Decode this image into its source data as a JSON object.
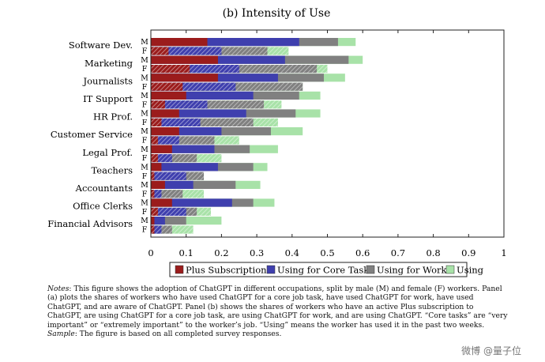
{
  "chart_data": {
    "type": "bar",
    "orientation": "horizontal",
    "stacked": true,
    "title": "(b) Intensity of Use",
    "categories": [
      "Software Dev.",
      "Marketing",
      "Journalists",
      "IT Support",
      "HR Prof.",
      "Customer Service",
      "Legal Prof.",
      "Teachers",
      "Accountants",
      "Office Clerks",
      "Financial Advisors"
    ],
    "genders": [
      "M",
      "F"
    ],
    "xlim": [
      0,
      1
    ],
    "xticks": [
      "0",
      "0.1",
      "0.2",
      "0.3",
      "0.4",
      "0.5",
      "0.6",
      "0.7",
      "0.8",
      "0.9",
      "1"
    ],
    "grid": false,
    "legend_position": "bottom",
    "series": [
      {
        "name": "Plus Subscription",
        "color": "#9b1c1c",
        "M": [
          0.16,
          0.19,
          0.19,
          0.1,
          0.08,
          0.08,
          0.06,
          0.03,
          0.04,
          0.06,
          0.01
        ],
        "F": [
          0.05,
          0.11,
          0.09,
          0.04,
          0.03,
          0.02,
          0.02,
          0.01,
          0.01,
          0.02,
          0.01
        ]
      },
      {
        "name": "Using for Core Task",
        "color": "#3f3fae",
        "M": [
          0.42,
          0.38,
          0.36,
          0.29,
          0.27,
          0.2,
          0.18,
          0.19,
          0.12,
          0.23,
          0.04
        ],
        "F": [
          0.2,
          0.25,
          0.24,
          0.16,
          0.14,
          0.08,
          0.06,
          0.1,
          0.03,
          0.1,
          0.03
        ]
      },
      {
        "name": "Using for Work",
        "color": "#808080",
        "M": [
          0.53,
          0.56,
          0.49,
          0.42,
          0.41,
          0.34,
          0.28,
          0.29,
          0.24,
          0.29,
          0.1
        ],
        "F": [
          0.33,
          0.47,
          0.43,
          0.32,
          0.29,
          0.18,
          0.13,
          0.15,
          0.09,
          0.13,
          0.06
        ]
      },
      {
        "name": "Using",
        "color": "#a8e2a8",
        "M": [
          0.58,
          0.6,
          0.55,
          0.48,
          0.48,
          0.43,
          0.36,
          0.33,
          0.31,
          0.35,
          0.2
        ],
        "F": [
          0.39,
          0.5,
          0.43,
          0.37,
          0.36,
          0.25,
          0.2,
          0.15,
          0.15,
          0.17,
          0.12
        ]
      }
    ]
  },
  "notes": {
    "label": "Notes",
    "text": ": This figure shows the adoption of ChatGPT in different occupations, split by male (M) and female (F) workers. Panel (a) plots the shares of workers who have used ChatGPT for a core job task, have used ChatGPT for work, have used ChatGPT, and are aware of ChatGPT. Panel (b) shows the shares of workers who have an active Plus subscription to ChatGPT, are using ChatGPT for a core job task, are using ChatGPT for work, and are using ChatGPT. “Core tasks” are “very important” or “extremely important” to the worker’s job. “Using” means the worker has used it in the past two weeks.",
    "sample_label": "Sample",
    "sample_text": ": The figure is based on all completed survey responses."
  },
  "watermark": "微博 @量子位"
}
